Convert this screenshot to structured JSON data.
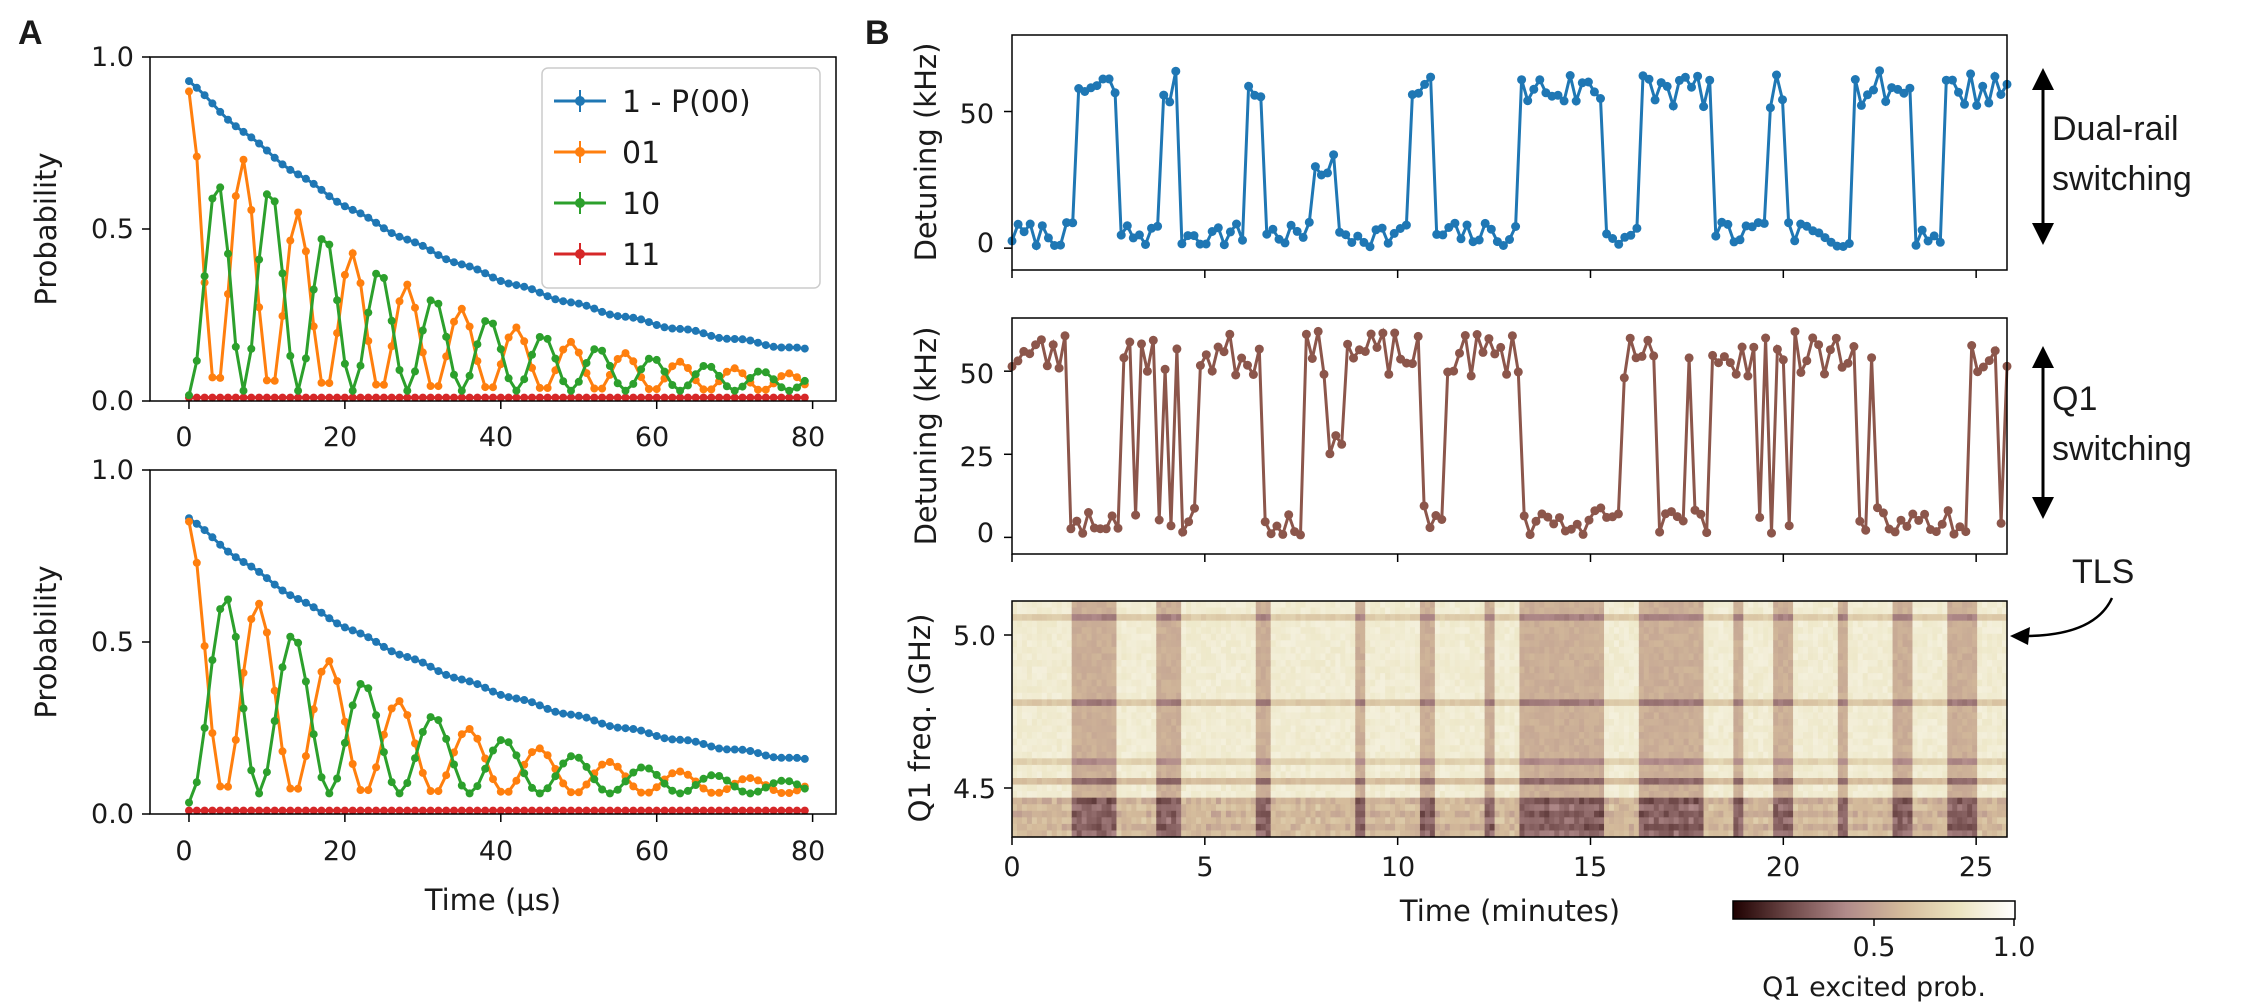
{
  "panels": {
    "a": "A",
    "b": "B"
  },
  "colors": {
    "blue": "#1f77b4",
    "orange": "#ff7f0e",
    "green": "#2ca02c",
    "red": "#d62728",
    "brown": "#8c564b"
  },
  "chart_data": [
    {
      "id": "A-top",
      "type": "line",
      "x_range": [
        0,
        79
      ],
      "xlim": [
        -5,
        83
      ],
      "ylim": [
        0.0,
        1.0
      ],
      "xticks": [
        "0",
        "20",
        "40",
        "60",
        "80"
      ],
      "yticks": [
        "0.0",
        "0.5",
        "1.0"
      ],
      "xlabel": "",
      "ylabel": "Probability",
      "legend_position": "top-right",
      "series": [
        {
          "name": "1 - P(00)",
          "color": "#1f77b4",
          "model": {
            "kind": "decay",
            "start": 0.93,
            "tau": 39,
            "plateau": 0.03
          }
        },
        {
          "name": "01",
          "color": "#ff7f0e",
          "model": {
            "kind": "osc",
            "amp": 0.9,
            "tau": 27,
            "period": 7.0,
            "phase": 0,
            "tail": 0.03
          }
        },
        {
          "name": "10",
          "color": "#2ca02c",
          "model": {
            "kind": "osc",
            "amp": 0.9,
            "tau": 27,
            "period": 7.0,
            "phase": 3.14159,
            "tail": 0.03
          }
        },
        {
          "name": "11",
          "color": "#d62728",
          "model": {
            "kind": "flat",
            "value": 0.01
          }
        }
      ]
    },
    {
      "id": "A-bottom",
      "type": "line",
      "x_range": [
        0,
        79
      ],
      "xlim": [
        -5,
        83
      ],
      "ylim": [
        0.0,
        1.0
      ],
      "xticks": [
        "0",
        "20",
        "40",
        "60",
        "80"
      ],
      "yticks": [
        "0.0",
        "0.5",
        "1.0"
      ],
      "xlabel": "Time (μs)",
      "ylabel": "Probability",
      "series": [
        {
          "name": "1 - P(00)",
          "color": "#1f77b4",
          "model": {
            "kind": "decay",
            "start": 0.86,
            "tau": 42,
            "plateau": 0.03
          }
        },
        {
          "name": "01",
          "color": "#ff7f0e",
          "model": {
            "kind": "osc",
            "amp": 0.85,
            "tau": 25,
            "period": 9.0,
            "phase": 0,
            "tail": 0.06
          }
        },
        {
          "name": "10",
          "color": "#2ca02c",
          "model": {
            "kind": "osc",
            "amp": 0.85,
            "tau": 25,
            "period": 9.0,
            "phase": 3.14159,
            "tail": 0.06
          }
        },
        {
          "name": "11",
          "color": "#d62728",
          "model": {
            "kind": "flat",
            "value": 0.01
          }
        }
      ]
    },
    {
      "id": "B-top",
      "type": "line",
      "xlim": [
        0,
        25.8
      ],
      "ylim": [
        -8,
        78
      ],
      "yticks": [
        0,
        50
      ],
      "xticks_at": [
        0,
        5,
        10,
        15,
        20,
        25
      ],
      "ylabel": "Detuning (kHz)",
      "series": [
        {
          "name": "",
          "color": "#1f77b4",
          "n_points": 165,
          "low_level": 5,
          "high_level": 58,
          "segments": [
            [
              0,
              1.6,
              "low"
            ],
            [
              1.6,
              2.8,
              "high"
            ],
            [
              2.8,
              3.9,
              "low"
            ],
            [
              3.9,
              4.3,
              "high"
            ],
            [
              4.3,
              4.8,
              "low"
            ],
            [
              4.8,
              6.0,
              "low"
            ],
            [
              6.0,
              6.5,
              "high"
            ],
            [
              6.5,
              7.8,
              "low"
            ],
            [
              7.8,
              8.4,
              "mid"
            ],
            [
              8.4,
              10.3,
              "low"
            ],
            [
              10.3,
              10.9,
              "high"
            ],
            [
              10.9,
              13.1,
              "low"
            ],
            [
              13.1,
              15.4,
              "high"
            ],
            [
              15.4,
              16.3,
              "low"
            ],
            [
              16.3,
              18.1,
              "high"
            ],
            [
              18.1,
              19.6,
              "low"
            ],
            [
              19.6,
              20.1,
              "high"
            ],
            [
              20.1,
              21.8,
              "low"
            ],
            [
              21.8,
              23.3,
              "high"
            ],
            [
              23.3,
              24.1,
              "low"
            ],
            [
              24.1,
              25.8,
              "high"
            ]
          ]
        }
      ],
      "side_label": [
        "Dual-rail",
        "switching"
      ]
    },
    {
      "id": "B-middle",
      "type": "line",
      "xlim": [
        0,
        25.8
      ],
      "ylim": [
        -5,
        66
      ],
      "yticks": [
        0,
        25,
        50
      ],
      "xticks_at": [
        0,
        5,
        10,
        15,
        20,
        25
      ],
      "ylabel": "Detuning (kHz)",
      "series": [
        {
          "name": "",
          "color": "#8c564b",
          "n_points": 170,
          "low_level": 5,
          "high_level": 55,
          "segments": [
            [
              0,
              1.5,
              "high"
            ],
            [
              1.5,
              2.8,
              "low"
            ],
            [
              2.8,
              5.0,
              "mixed"
            ],
            [
              5.0,
              6.5,
              "high"
            ],
            [
              6.5,
              7.6,
              "low"
            ],
            [
              7.6,
              8.1,
              "high"
            ],
            [
              8.1,
              8.6,
              "mid"
            ],
            [
              8.6,
              10.6,
              "high"
            ],
            [
              10.6,
              11.2,
              "low"
            ],
            [
              11.2,
              13.2,
              "high"
            ],
            [
              13.2,
              15.8,
              "low"
            ],
            [
              15.8,
              16.6,
              "high"
            ],
            [
              16.6,
              18.2,
              "mixed"
            ],
            [
              18.2,
              19.1,
              "high"
            ],
            [
              19.1,
              20.2,
              "mixed"
            ],
            [
              20.2,
              21.8,
              "high"
            ],
            [
              21.8,
              23.3,
              "mixed"
            ],
            [
              23.3,
              24.8,
              "low"
            ],
            [
              24.8,
              25.8,
              "mixed"
            ]
          ]
        }
      ],
      "side_label": [
        "Q1",
        "switching"
      ]
    },
    {
      "id": "B-bottom",
      "type": "heatmap",
      "xlim": [
        0,
        25.8
      ],
      "ylim": [
        4.32,
        5.1
      ],
      "xticks": [
        "0",
        "5",
        "10",
        "15",
        "20",
        "25"
      ],
      "yticks": [
        "4.5",
        "5.0"
      ],
      "xlabel": "Time (minutes)",
      "ylabel": "Q1 freq. (GHz)",
      "colormap": "pink",
      "colorbar_ticks": [
        "0.5",
        "1.0"
      ],
      "colorbar_label": "Q1  excited prob.",
      "dark_columns": [
        [
          1.5,
          2.7
        ],
        [
          3.8,
          4.4
        ],
        [
          6.3,
          6.7
        ],
        [
          8.9,
          9.2
        ],
        [
          10.6,
          11.0
        ],
        [
          12.3,
          12.5
        ],
        [
          13.1,
          15.3
        ],
        [
          16.2,
          17.9
        ],
        [
          18.7,
          19.0
        ],
        [
          19.7,
          20.3
        ],
        [
          21.4,
          21.7
        ],
        [
          22.8,
          23.3
        ],
        [
          24.2,
          25.0
        ]
      ],
      "annotation": "TLS"
    }
  ]
}
